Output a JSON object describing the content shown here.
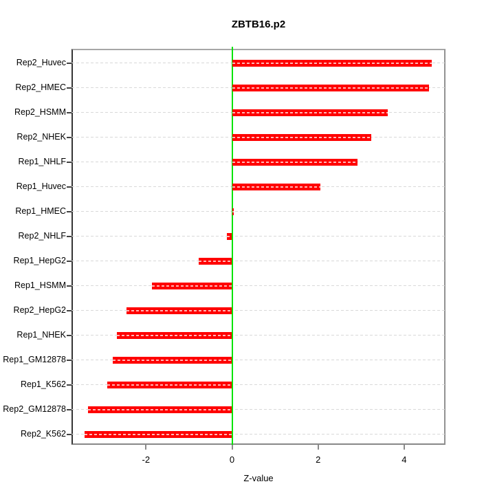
{
  "chart_data": {
    "type": "bar",
    "orientation": "horizontal",
    "title": "ZBTB16.p2",
    "xlabel": "Z-value",
    "categories": [
      "Rep2_Huvec",
      "Rep2_HMEC",
      "Rep2_HSMM",
      "Rep2_NHEK",
      "Rep1_NHLF",
      "Rep1_Huvec",
      "Rep1_HMEC",
      "Rep2_NHLF",
      "Rep1_HepG2",
      "Rep1_HSMM",
      "Rep2_HepG2",
      "Rep1_NHEK",
      "Rep1_GM12878",
      "Rep1_K562",
      "Rep2_GM12878",
      "Rep2_K562"
    ],
    "values": [
      4.64,
      4.58,
      3.62,
      3.23,
      2.92,
      2.06,
      0.04,
      -0.12,
      -0.77,
      -1.86,
      -2.46,
      -2.68,
      -2.77,
      -2.9,
      -3.35,
      -3.42
    ],
    "xlim": [
      -3.73,
      4.96
    ],
    "x_ticks": [
      -2,
      0,
      2,
      4
    ],
    "grid": true,
    "legend": false,
    "colors": {
      "bar": "#ff0000",
      "zero_line": "#00e400",
      "gridline": "#d8d8d8",
      "frame": "#8c8c8c"
    }
  }
}
